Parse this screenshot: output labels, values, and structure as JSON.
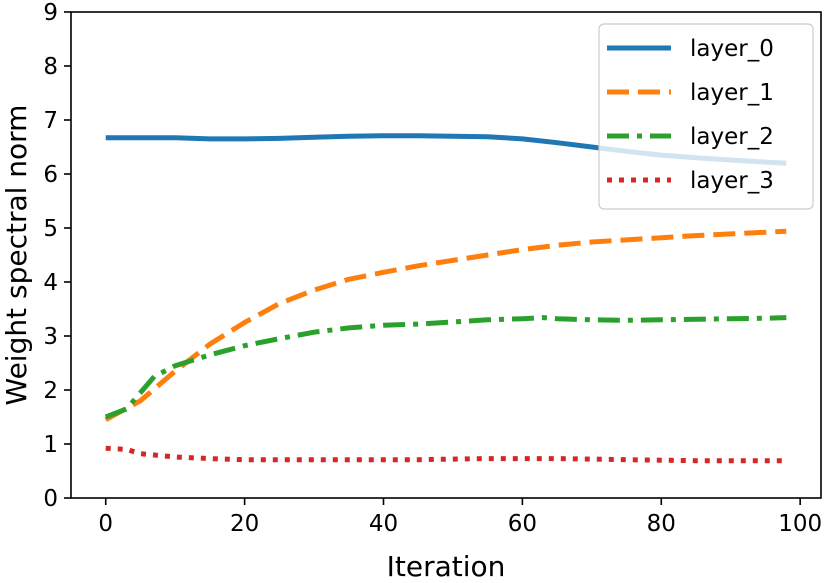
{
  "chart_data": {
    "type": "line",
    "title": "",
    "xlabel": "Iteration",
    "ylabel": "Weight spectral norm",
    "xlim": [
      -5,
      103
    ],
    "ylim": [
      0,
      9
    ],
    "xticks": [
      "0",
      "20",
      "40",
      "60",
      "80",
      "100"
    ],
    "yticks": [
      "0",
      "1",
      "2",
      "3",
      "4",
      "5",
      "6",
      "7",
      "8",
      "9"
    ],
    "grid": false,
    "legend_position": "top-right",
    "series": [
      {
        "name": "layer_0",
        "color": "#1f77b4",
        "style": "solid",
        "x": [
          0,
          5,
          10,
          15,
          20,
          25,
          30,
          35,
          40,
          45,
          50,
          55,
          60,
          65,
          70,
          75,
          80,
          85,
          90,
          95,
          98
        ],
        "y": [
          6.67,
          6.67,
          6.67,
          6.65,
          6.65,
          6.66,
          6.68,
          6.7,
          6.71,
          6.71,
          6.7,
          6.69,
          6.65,
          6.58,
          6.5,
          6.42,
          6.35,
          6.3,
          6.26,
          6.22,
          6.2
        ]
      },
      {
        "name": "layer_1",
        "color": "#ff7f0e",
        "style": "dashed",
        "x": [
          0,
          5,
          10,
          15,
          20,
          25,
          30,
          35,
          40,
          45,
          50,
          55,
          60,
          65,
          70,
          75,
          80,
          85,
          90,
          95,
          98
        ],
        "y": [
          1.45,
          1.8,
          2.35,
          2.85,
          3.25,
          3.6,
          3.85,
          4.05,
          4.18,
          4.3,
          4.4,
          4.5,
          4.6,
          4.68,
          4.74,
          4.78,
          4.82,
          4.86,
          4.89,
          4.92,
          4.94
        ]
      },
      {
        "name": "layer_2",
        "color": "#2ca02c",
        "style": "dashdot",
        "x": [
          0,
          3,
          5,
          7,
          10,
          15,
          20,
          25,
          30,
          35,
          40,
          45,
          50,
          55,
          60,
          63,
          65,
          70,
          75,
          80,
          85,
          90,
          95,
          98
        ],
        "y": [
          1.5,
          1.65,
          1.95,
          2.25,
          2.45,
          2.65,
          2.82,
          2.95,
          3.07,
          3.15,
          3.2,
          3.22,
          3.26,
          3.3,
          3.32,
          3.34,
          3.32,
          3.3,
          3.29,
          3.3,
          3.31,
          3.32,
          3.33,
          3.34
        ]
      },
      {
        "name": "layer_3",
        "color": "#d62728",
        "style": "dotted",
        "x": [
          0,
          3,
          5,
          10,
          15,
          20,
          25,
          30,
          35,
          40,
          45,
          50,
          55,
          60,
          65,
          70,
          75,
          80,
          85,
          90,
          95,
          98
        ],
        "y": [
          0.92,
          0.9,
          0.82,
          0.76,
          0.73,
          0.71,
          0.71,
          0.71,
          0.71,
          0.71,
          0.71,
          0.72,
          0.73,
          0.73,
          0.73,
          0.72,
          0.71,
          0.7,
          0.69,
          0.69,
          0.69,
          0.69
        ]
      }
    ]
  }
}
